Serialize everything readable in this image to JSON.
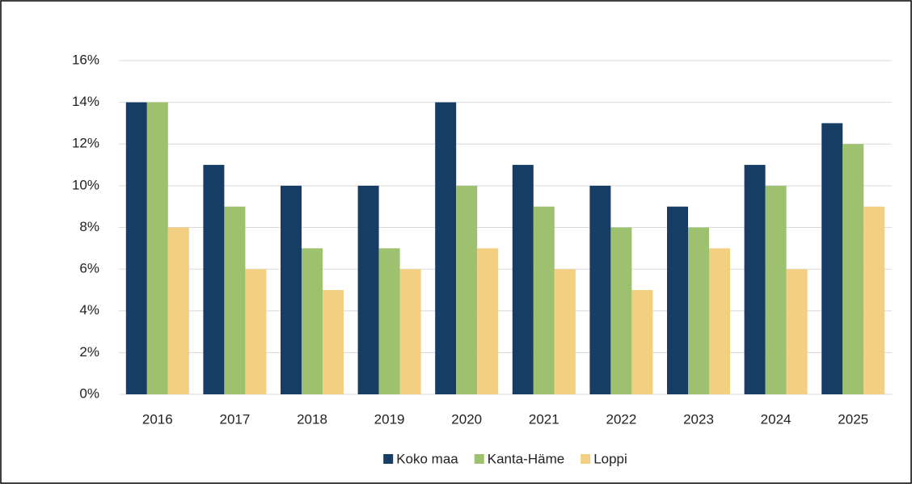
{
  "chart_data": {
    "type": "bar",
    "categories": [
      "2016",
      "2017",
      "2018",
      "2019",
      "2020",
      "2021",
      "2022",
      "2023",
      "2024",
      "2025"
    ],
    "series": [
      {
        "name": "Koko maa",
        "color": "#173d64",
        "values": [
          14,
          11,
          10,
          10,
          14,
          11,
          10,
          9,
          11,
          13
        ]
      },
      {
        "name": "Kanta-Häme",
        "color": "#9dc16f",
        "values": [
          14,
          9,
          7,
          7,
          10,
          9,
          8,
          8,
          10,
          12
        ]
      },
      {
        "name": "Loppi",
        "color": "#f3cf82",
        "values": [
          8,
          6,
          5,
          6,
          7,
          6,
          5,
          7,
          6,
          9
        ]
      }
    ],
    "ylim": [
      0,
      16
    ],
    "yticks": [
      {
        "value": 0,
        "label": "0%"
      },
      {
        "value": 2,
        "label": "2%"
      },
      {
        "value": 4,
        "label": "4%"
      },
      {
        "value": 6,
        "label": "6%"
      },
      {
        "value": 8,
        "label": "8%"
      },
      {
        "value": 10,
        "label": "10%"
      },
      {
        "value": 12,
        "label": "12%"
      },
      {
        "value": 14,
        "label": "14%"
      },
      {
        "value": 16,
        "label": "16%"
      }
    ],
    "grid": true,
    "legend": "bottom"
  }
}
